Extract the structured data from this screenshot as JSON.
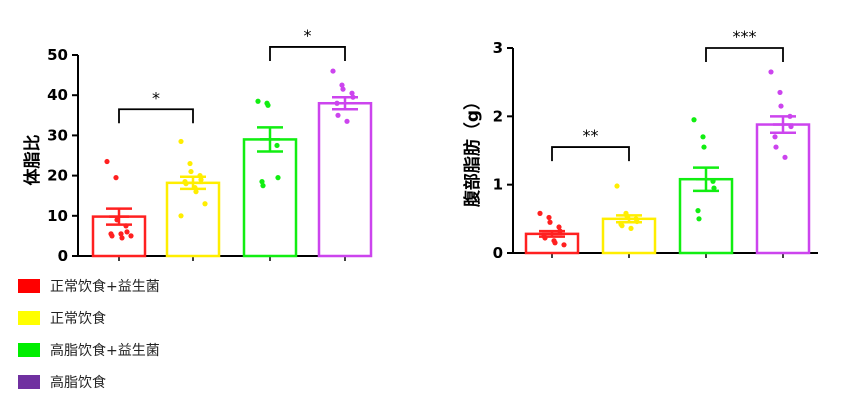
{
  "chart_data": [
    {
      "type": "bar",
      "ylabel": "体脂比",
      "ylim": [
        0,
        50
      ],
      "yticks": [
        "0",
        "10",
        "20",
        "30",
        "40",
        "50"
      ],
      "series": [
        {
          "values": [
            9.8,
            18.2,
            29.0,
            38.0
          ],
          "sem": [
            2.0,
            1.5,
            3.0,
            1.5
          ]
        }
      ],
      "points": [
        [
          23.5,
          19.5,
          9.0,
          7.5,
          6.0,
          5.5,
          5.0,
          5.5,
          4.5,
          5.0
        ],
        [
          28.5,
          23.0,
          21.0,
          20.0,
          19.0,
          18.5,
          18.0,
          17.0,
          16.0,
          13.0,
          10.0
        ],
        [
          38.5,
          38.0,
          37.5,
          27.5,
          19.5,
          18.5,
          17.5
        ],
        [
          46.0,
          42.5,
          41.5,
          40.5,
          39.5,
          38.0,
          35.0,
          33.5
        ]
      ],
      "annotations": [
        {
          "text": "*",
          "from": 0,
          "to": 1,
          "level": 36.5
        },
        {
          "text": "*",
          "from": 2,
          "to": 3,
          "level": 52
        }
      ]
    },
    {
      "type": "bar",
      "ylabel": "腹部脂肪（g）",
      "ylim": [
        0,
        3
      ],
      "yticks": [
        "0",
        "1",
        "2",
        "3"
      ],
      "series": [
        {
          "values": [
            0.28,
            0.5,
            1.08,
            1.88
          ],
          "sem": [
            0.04,
            0.05,
            0.17,
            0.12
          ]
        }
      ],
      "points": [
        [
          0.58,
          0.52,
          0.45,
          0.38,
          0.32,
          0.25,
          0.22,
          0.18,
          0.15,
          0.12
        ],
        [
          0.98,
          0.58,
          0.54,
          0.5,
          0.46,
          0.42,
          0.4,
          0.36
        ],
        [
          1.95,
          1.7,
          1.55,
          1.05,
          0.95,
          0.62,
          0.5
        ],
        [
          2.65,
          2.35,
          2.15,
          2.0,
          1.85,
          1.7,
          1.55,
          1.4
        ]
      ],
      "annotations": [
        {
          "text": "**",
          "from": 0,
          "to": 1,
          "level": 1.55
        },
        {
          "text": "***",
          "from": 2,
          "to": 3,
          "level": 3.0
        }
      ]
    }
  ],
  "legend": [
    {
      "label": "正常饮食+益生菌",
      "color": "#ff0000"
    },
    {
      "label": "正常饮食",
      "color": "#ffff00"
    },
    {
      "label": "高脂饮食+益生菌",
      "color": "#00ee00"
    },
    {
      "label": "高脂饮食",
      "color": "#7030a0"
    }
  ],
  "bar_colors": [
    "#ff2020",
    "#ffee00",
    "#11ee11",
    "#cc44ee"
  ]
}
